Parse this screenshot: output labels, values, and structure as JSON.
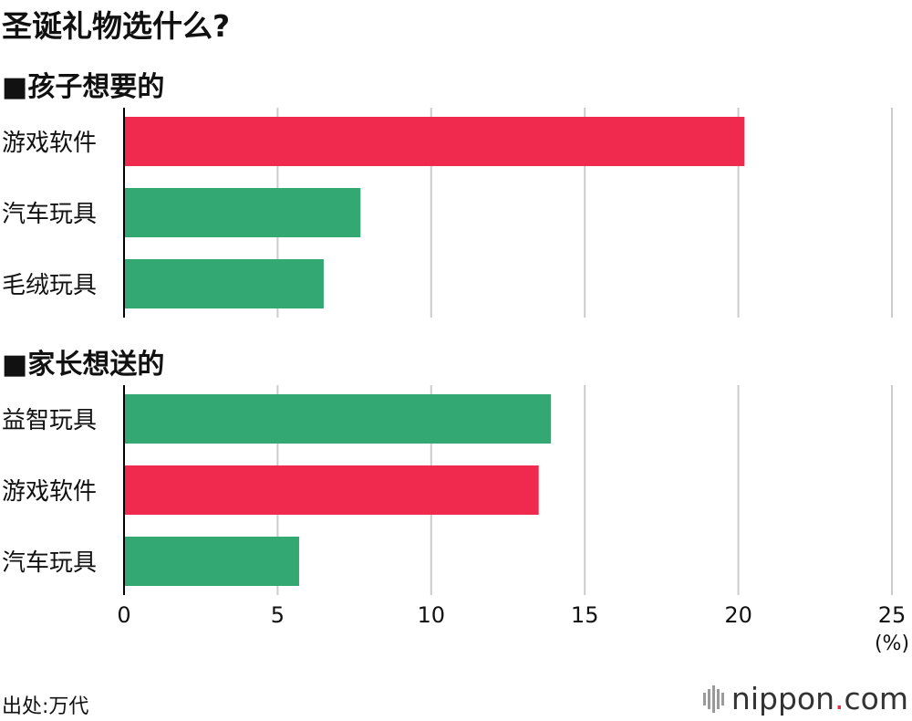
{
  "title": "圣诞礼物选什么?",
  "source": "出处:万代",
  "logo": {
    "name": "nippon",
    "dot": ".",
    "tld": "com"
  },
  "colors": {
    "red": "#f0294e",
    "green": "#33a872",
    "grid": "#cccccc",
    "axis": "#000000"
  },
  "chart_data": {
    "type": "bar",
    "orientation": "horizontal",
    "xlim": [
      0,
      25
    ],
    "xticks": [
      "0",
      "5",
      "10",
      "15",
      "20",
      "25"
    ],
    "xunit": "(%)",
    "grid": true,
    "groups": [
      {
        "title": "■孩子想要的",
        "categories": [
          "游戏软件",
          "汽车玩具",
          "毛绒玩具"
        ],
        "values": [
          20.2,
          7.7,
          6.5
        ],
        "colors": [
          "red",
          "green",
          "green"
        ]
      },
      {
        "title": "■家长想送的",
        "categories": [
          "益智玩具",
          "游戏软件",
          "汽车玩具"
        ],
        "values": [
          13.9,
          13.5,
          5.7
        ],
        "colors": [
          "green",
          "red",
          "green"
        ]
      }
    ]
  }
}
